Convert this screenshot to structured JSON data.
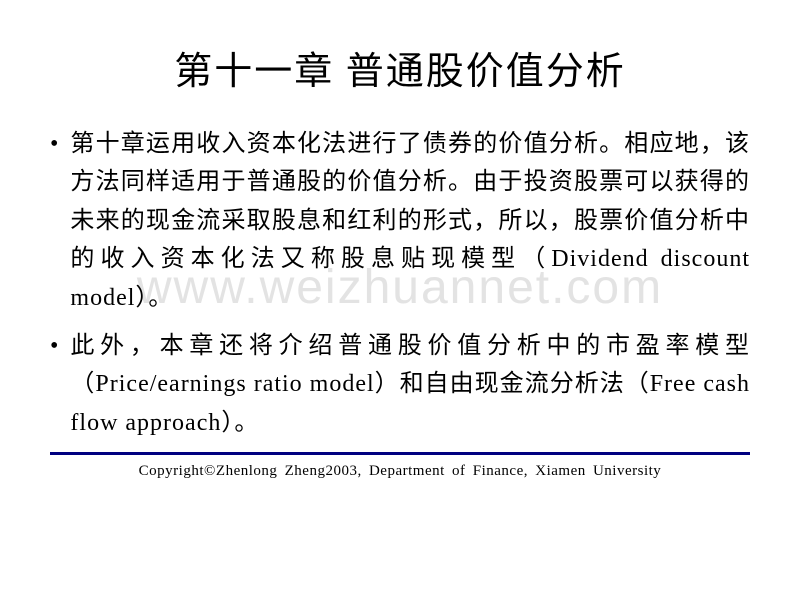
{
  "title": "第十一章 普通股价值分析",
  "bullets": [
    {
      "text": "第十章运用收入资本化法进行了债券的价值分析。相应地，该方法同样适用于普通股的价值分析。由于投资股票可以获得的未来的现金流采取股息和红利的形式，所以，股票价值分析中的收入资本化法又称股息贴现模型（Dividend discount model）。"
    },
    {
      "text": "此外，本章还将介绍普通股价值分析中的市盈率模型（Price/earnings ratio model）和自由现金流分析法（Free cash flow approach）。"
    }
  ],
  "watermark": "www.weizhuannet.com",
  "footer": "Copyright©Zhenlong Zheng2003, Department of Finance, Xiamen University",
  "colors": {
    "background": "#ffffff",
    "text": "#000000",
    "footer_line": "#000080",
    "watermark": "rgba(200, 200, 200, 0.5)"
  },
  "typography": {
    "title_fontsize": 38,
    "body_fontsize": 24,
    "footer_fontsize": 15,
    "watermark_fontsize": 48,
    "font_family": "SimSun"
  }
}
